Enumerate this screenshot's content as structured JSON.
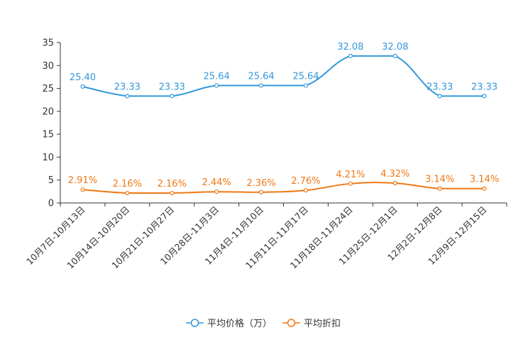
{
  "chart_data": {
    "type": "line",
    "categories": [
      "10月7日-10月13日",
      "10月14日-10月20日",
      "10月21日-10月27日",
      "10月28日-11月3日",
      "11月4日-11月10日",
      "11月11日-11月17日",
      "11月18日-11月24日",
      "11月25日-12月1日",
      "12月2日-12月8日",
      "12月9日-12月15日"
    ],
    "ylim": [
      0,
      35
    ],
    "yticks": [
      0,
      5,
      10,
      15,
      20,
      25,
      30,
      35
    ],
    "series": [
      {
        "name": "平均价格（万）",
        "color": "#3398DB",
        "values": [
          25.4,
          23.33,
          23.33,
          25.64,
          25.64,
          25.64,
          32.08,
          32.08,
          23.33,
          23.33
        ],
        "labels": [
          "25.40",
          "23.33",
          "23.33",
          "25.64",
          "25.64",
          "25.64",
          "32.08",
          "32.08",
          "23.33",
          "23.33"
        ]
      },
      {
        "name": "平均折扣",
        "color": "#F07814",
        "values": [
          2.91,
          2.16,
          2.16,
          2.44,
          2.36,
          2.76,
          4.21,
          4.32,
          3.14,
          3.14
        ],
        "labels": [
          "2.91%",
          "2.16%",
          "2.16%",
          "2.44%",
          "2.36%",
          "2.76%",
          "4.21%",
          "4.32%",
          "3.14%",
          "3.14%"
        ]
      }
    ],
    "legend_position": "bottom-center"
  }
}
